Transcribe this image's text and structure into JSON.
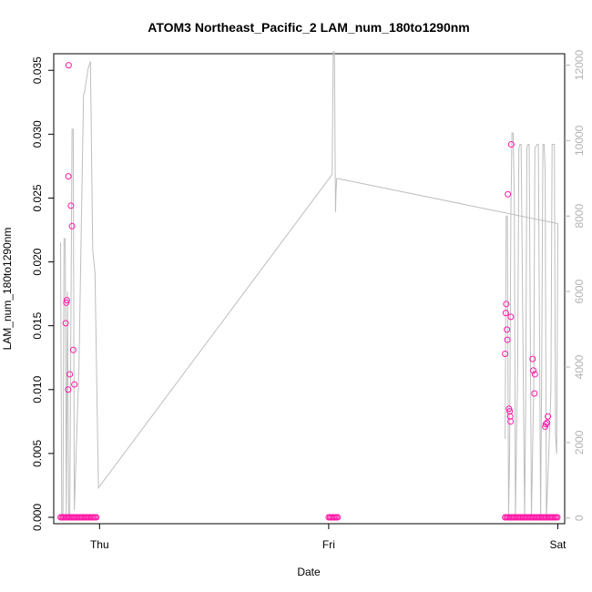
{
  "chart_data": {
    "type": "scatter",
    "title": "ATOM3 Northeast_Pacific_2 LAM_num_180to1290nm",
    "xlabel": "Date",
    "ylabel": "LAM_num_180to1290nm",
    "x_ticks": [
      "Thu",
      "Fri",
      "Sat"
    ],
    "x_tick_values": [
      0.0,
      1.0,
      2.0
    ],
    "xlim": [
      -0.2,
      2.03
    ],
    "ylim": [
      -0.0005,
      0.0363
    ],
    "y_ticks": [
      0.0,
      0.005,
      0.01,
      0.015,
      0.02,
      0.025,
      0.03,
      0.035
    ],
    "y_tick_labels": [
      "0.000",
      "0.005",
      "0.010",
      "0.015",
      "0.020",
      "0.025",
      "0.030",
      "0.035"
    ],
    "y2_lim": [
      -150,
      12300
    ],
    "y2_ticks": [
      0,
      2000,
      4000,
      6000,
      8000,
      10000,
      12000
    ],
    "y2_tick_labels": [
      "0",
      "2000",
      "4000",
      "6000",
      "8000",
      "10000",
      "12000"
    ],
    "colors": {
      "points": "#ff1aa8",
      "line": "#bebebe",
      "axis": "#000000",
      "right_axis": "#b3b3b3"
    },
    "grid": false,
    "series": [
      {
        "kind": "points",
        "points": [
          {
            "x": -0.148,
            "y": 0.0152
          },
          {
            "x": -0.145,
            "y": 0.0168
          },
          {
            "x": -0.143,
            "y": 0.017
          },
          {
            "x": -0.137,
            "y": 0.01
          },
          {
            "x": -0.136,
            "y": 0.0267
          },
          {
            "x": -0.135,
            "y": 0.0354
          },
          {
            "x": -0.13,
            "y": 0.0112
          },
          {
            "x": -0.125,
            "y": 0.0244
          },
          {
            "x": -0.12,
            "y": 0.0228
          },
          {
            "x": -0.115,
            "y": 0.0131
          },
          {
            "x": -0.11,
            "y": 0.0104
          },
          {
            "x": 1.77,
            "y": 0.0128
          },
          {
            "x": 1.773,
            "y": 0.016
          },
          {
            "x": 1.775,
            "y": 0.0167
          },
          {
            "x": 1.778,
            "y": 0.0147
          },
          {
            "x": 1.78,
            "y": 0.0139
          },
          {
            "x": 1.782,
            "y": 0.0253
          },
          {
            "x": 1.787,
            "y": 0.0085
          },
          {
            "x": 1.79,
            "y": 0.0083
          },
          {
            "x": 1.792,
            "y": 0.0079
          },
          {
            "x": 1.794,
            "y": 0.0075
          },
          {
            "x": 1.795,
            "y": 0.0157
          },
          {
            "x": 1.797,
            "y": 0.0292
          },
          {
            "x": 1.89,
            "y": 0.0124
          },
          {
            "x": 1.893,
            "y": 0.0115
          },
          {
            "x": 1.898,
            "y": 0.0097
          },
          {
            "x": 1.9,
            "y": 0.0112
          },
          {
            "x": 1.945,
            "y": 0.0071
          },
          {
            "x": 1.948,
            "y": 0.0073
          },
          {
            "x": 1.953,
            "y": 0.0074
          },
          {
            "x": 1.957,
            "y": 0.0079
          }
        ],
        "zero_ranges": [
          [
            -0.17,
            -0.01
          ],
          [
            1.0,
            1.04
          ],
          [
            1.77,
            2.0
          ]
        ]
      },
      {
        "kind": "line",
        "axis": "right",
        "points": [
          [
            -0.17,
            7300
          ],
          [
            -0.165,
            0
          ],
          [
            -0.16,
            0
          ],
          [
            -0.155,
            7400
          ],
          [
            -0.15,
            7400
          ],
          [
            -0.145,
            0
          ],
          [
            -0.14,
            6000
          ],
          [
            -0.135,
            0
          ],
          [
            -0.13,
            0
          ],
          [
            -0.12,
            10300
          ],
          [
            -0.115,
            10300
          ],
          [
            -0.11,
            200
          ],
          [
            -0.09,
            4000
          ],
          [
            -0.07,
            11200
          ],
          [
            -0.065,
            11300
          ],
          [
            -0.05,
            11900
          ],
          [
            -0.04,
            12100
          ],
          [
            -0.03,
            7100
          ],
          [
            -0.02,
            6500
          ],
          [
            -0.005,
            800
          ],
          [
            1.015,
            9100
          ],
          [
            1.02,
            12350
          ],
          [
            1.025,
            12350
          ],
          [
            1.03,
            8100
          ],
          [
            1.032,
            8600
          ],
          [
            1.035,
            9000
          ],
          [
            2.0,
            7800
          ],
          [
            2.0,
            7700
          ],
          [
            1.995,
            1700
          ],
          [
            1.99,
            2200
          ],
          [
            1.985,
            9900
          ],
          [
            1.98,
            9900
          ],
          [
            1.975,
            9900
          ],
          [
            1.97,
            3400
          ],
          [
            1.96,
            1600
          ],
          [
            1.95,
            0
          ],
          [
            1.945,
            9200
          ],
          [
            1.94,
            9900
          ],
          [
            1.935,
            9900
          ],
          [
            1.93,
            4000
          ],
          [
            1.925,
            0
          ],
          [
            1.915,
            9900
          ],
          [
            1.91,
            9900
          ],
          [
            1.9,
            9800
          ],
          [
            1.895,
            3400
          ],
          [
            1.885,
            0
          ],
          [
            1.875,
            9900
          ],
          [
            1.87,
            9900
          ],
          [
            1.865,
            9800
          ],
          [
            1.86,
            3000
          ],
          [
            1.855,
            0
          ],
          [
            1.84,
            9900
          ],
          [
            1.835,
            9900
          ],
          [
            1.83,
            9800
          ],
          [
            1.825,
            4000
          ],
          [
            1.815,
            0
          ],
          [
            1.81,
            8500
          ],
          [
            1.805,
            10200
          ],
          [
            1.8,
            10200
          ],
          [
            1.795,
            8000
          ],
          [
            1.79,
            1800
          ],
          [
            1.785,
            0
          ],
          [
            1.78,
            8000
          ],
          [
            1.775,
            8000
          ],
          [
            1.77,
            2100
          ]
        ]
      }
    ]
  }
}
